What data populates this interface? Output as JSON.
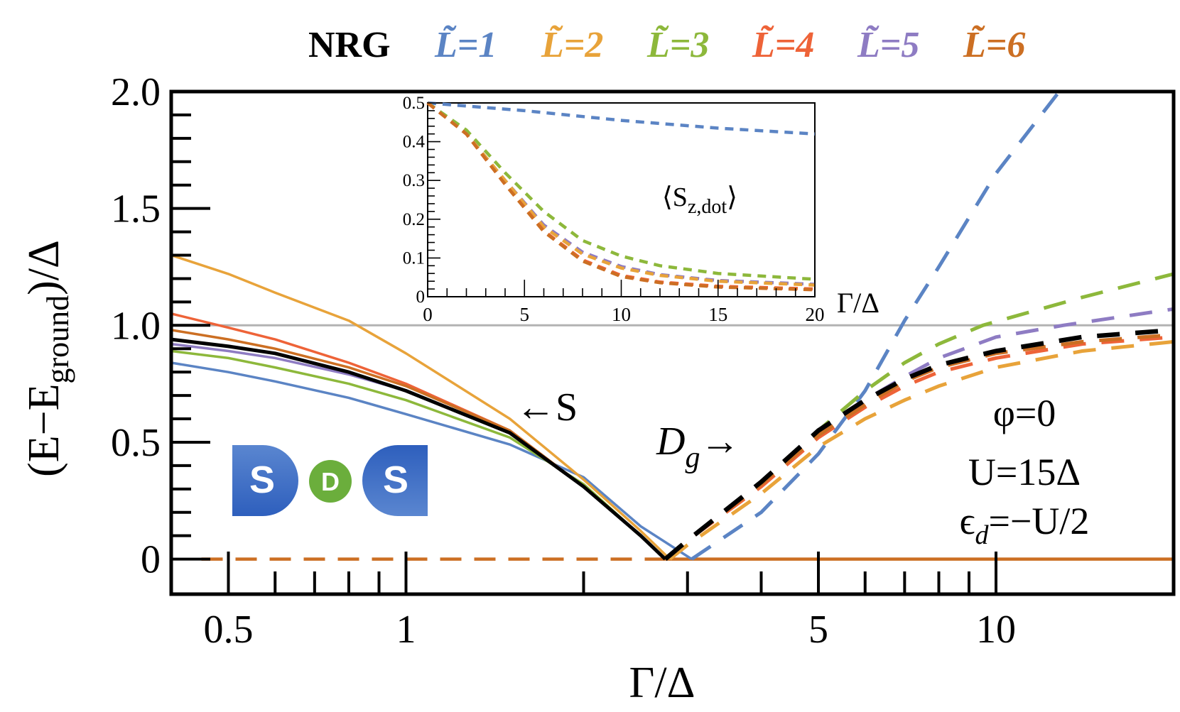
{
  "legend": {
    "reference_label": "NRG",
    "entries": [
      "L̃=1",
      "L̃=2",
      "L̃=3",
      "L̃=4",
      "L̃=5",
      "L̃=6"
    ]
  },
  "logo": {
    "left": "S",
    "middle": "D",
    "right": "S",
    "lead_color": "#3565C2",
    "dot_color": "#6BAE3C"
  },
  "chart_data": [
    {
      "type": "line",
      "xscale": "log",
      "xlim": [
        0.4,
        20
      ],
      "ylim": [
        -0.15,
        2.0
      ],
      "grid": false,
      "legend_placement": "top",
      "xlabel": "Γ/Δ",
      "ylabel": {
        "prefix": "(E−E",
        "sub": "ground",
        "suffix": ")/Δ"
      },
      "xticks": {
        "labeled": [
          {
            "v": 0.5,
            "label": "0.5"
          },
          {
            "v": 1,
            "label": "1"
          },
          {
            "v": 5,
            "label": "5"
          },
          {
            "v": 10,
            "label": "10"
          }
        ],
        "minor": [
          0.6,
          0.7,
          0.8,
          0.9,
          2,
          3,
          4,
          6,
          7,
          8,
          9
        ]
      },
      "yticks": [
        {
          "v": 0,
          "label": "0"
        },
        {
          "v": 0.5,
          "label": "0.5"
        },
        {
          "v": 1.0,
          "label": "1.0"
        },
        {
          "v": 1.5,
          "label": "1.5"
        },
        {
          "v": 2.0,
          "label": "2.0"
        }
      ],
      "reference_line": {
        "y": 1.0,
        "color": "#B3B3B3"
      },
      "ground_line": {
        "color": "#CC6F23",
        "dashed": [
          [
            0.45,
            0
          ],
          [
            2.75,
            0
          ]
        ],
        "solid": [
          [
            2.75,
            0
          ],
          [
            20,
            0
          ]
        ]
      },
      "series": [
        {
          "name": "L̃=1",
          "color": "#5B84C4",
          "S": [
            [
              0.4,
              0.84
            ],
            [
              0.5,
              0.8
            ],
            [
              0.6,
              0.76
            ],
            [
              0.8,
              0.69
            ],
            [
              1,
              0.62
            ],
            [
              1.5,
              0.49
            ],
            [
              2,
              0.35
            ],
            [
              2.5,
              0.14
            ],
            [
              3.05,
              0
            ]
          ],
          "Dg": [
            [
              3.05,
              0
            ],
            [
              4,
              0.2
            ],
            [
              5,
              0.45
            ],
            [
              6,
              0.72
            ],
            [
              7,
              1.02
            ],
            [
              8,
              1.25
            ],
            [
              10,
              1.65
            ],
            [
              12.8,
              2.0
            ]
          ]
        },
        {
          "name": "L̃=2",
          "color": "#E8A33A",
          "S": [
            [
              0.4,
              1.3
            ],
            [
              0.5,
              1.22
            ],
            [
              0.6,
              1.14
            ],
            [
              0.8,
              1.02
            ],
            [
              1,
              0.88
            ],
            [
              1.5,
              0.6
            ],
            [
              2,
              0.34
            ],
            [
              2.5,
              0.12
            ],
            [
              2.8,
              0
            ]
          ],
          "Dg": [
            [
              2.8,
              0
            ],
            [
              3,
              0.06
            ],
            [
              4,
              0.28
            ],
            [
              5,
              0.48
            ],
            [
              6,
              0.6
            ],
            [
              7,
              0.68
            ],
            [
              8,
              0.74
            ],
            [
              10,
              0.82
            ],
            [
              14,
              0.89
            ],
            [
              20,
              0.93
            ]
          ]
        },
        {
          "name": "L̃=3",
          "color": "#8DB83B",
          "S": [
            [
              0.4,
              0.89
            ],
            [
              0.5,
              0.86
            ],
            [
              0.6,
              0.82
            ],
            [
              0.8,
              0.75
            ],
            [
              1,
              0.68
            ],
            [
              1.5,
              0.52
            ],
            [
              2,
              0.32
            ],
            [
              2.5,
              0.1
            ],
            [
              2.75,
              0
            ]
          ],
          "Dg": [
            [
              2.75,
              0
            ],
            [
              3,
              0.08
            ],
            [
              4,
              0.32
            ],
            [
              5,
              0.55
            ],
            [
              6,
              0.72
            ],
            [
              7,
              0.84
            ],
            [
              8,
              0.92
            ],
            [
              9.5,
              1.0
            ],
            [
              14,
              1.12
            ],
            [
              20,
              1.22
            ]
          ]
        },
        {
          "name": "L̃=4",
          "color": "#EE6338",
          "S": [
            [
              0.4,
              1.05
            ],
            [
              0.5,
              0.99
            ],
            [
              0.6,
              0.94
            ],
            [
              0.8,
              0.84
            ],
            [
              1,
              0.75
            ],
            [
              1.5,
              0.55
            ],
            [
              2,
              0.31
            ],
            [
              2.5,
              0.1
            ],
            [
              2.75,
              0
            ]
          ],
          "Dg": [
            [
              2.75,
              0
            ],
            [
              3,
              0.08
            ],
            [
              4,
              0.31
            ],
            [
              5,
              0.52
            ],
            [
              6,
              0.65
            ],
            [
              7,
              0.74
            ],
            [
              8,
              0.8
            ],
            [
              10,
              0.86
            ],
            [
              14,
              0.92
            ],
            [
              20,
              0.95
            ]
          ]
        },
        {
          "name": "L̃=5",
          "color": "#8E7CC3",
          "S": [
            [
              0.4,
              0.92
            ],
            [
              0.5,
              0.89
            ],
            [
              0.6,
              0.86
            ],
            [
              0.8,
              0.79
            ],
            [
              1,
              0.72
            ],
            [
              1.5,
              0.54
            ],
            [
              2,
              0.31
            ],
            [
              2.5,
              0.1
            ],
            [
              2.75,
              0
            ]
          ],
          "Dg": [
            [
              2.75,
              0
            ],
            [
              3,
              0.08
            ],
            [
              4,
              0.33
            ],
            [
              5,
              0.55
            ],
            [
              6,
              0.68
            ],
            [
              7,
              0.78
            ],
            [
              8,
              0.86
            ],
            [
              10,
              0.95
            ],
            [
              13,
              1.0
            ],
            [
              20,
              1.07
            ]
          ]
        },
        {
          "name": "L̃=6",
          "color": "#CC6F23",
          "S": [
            [
              0.4,
              0.98
            ],
            [
              0.5,
              0.94
            ],
            [
              0.6,
              0.9
            ],
            [
              0.8,
              0.82
            ],
            [
              1,
              0.74
            ],
            [
              1.5,
              0.55
            ],
            [
              2,
              0.31
            ],
            [
              2.5,
              0.1
            ],
            [
              2.75,
              0
            ]
          ],
          "Dg": [
            [
              2.75,
              0
            ],
            [
              3,
              0.08
            ],
            [
              4,
              0.32
            ],
            [
              5,
              0.53
            ],
            [
              6,
              0.66
            ],
            [
              7,
              0.76
            ],
            [
              8,
              0.82
            ],
            [
              10,
              0.88
            ],
            [
              14,
              0.93
            ],
            [
              20,
              0.96
            ]
          ]
        },
        {
          "name": "NRG",
          "color": "#000000",
          "S": [
            [
              0.4,
              0.94
            ],
            [
              0.5,
              0.91
            ],
            [
              0.6,
              0.88
            ],
            [
              0.8,
              0.8
            ],
            [
              1,
              0.72
            ],
            [
              1.5,
              0.54
            ],
            [
              2,
              0.31
            ],
            [
              2.5,
              0.1
            ],
            [
              2.75,
              0
            ]
          ],
          "Dg": [
            [
              2.75,
              0
            ],
            [
              3,
              0.08
            ],
            [
              4,
              0.33
            ],
            [
              5,
              0.55
            ],
            [
              6,
              0.68
            ],
            [
              7,
              0.77
            ],
            [
              8,
              0.83
            ],
            [
              10,
              0.89
            ],
            [
              14,
              0.95
            ],
            [
              20,
              0.98
            ]
          ]
        }
      ],
      "annotations": {
        "singlet": "←S",
        "doublet_main": "D",
        "doublet_sub": "g",
        "doublet_arrow": "→",
        "phi": "φ=0",
        "U": "U=15Δ",
        "eps_main": "ϵ",
        "eps_sub": "d",
        "eps_rest": "=−U/2"
      }
    },
    {
      "type": "line",
      "xlim": [
        0,
        20
      ],
      "ylim": [
        0,
        0.5
      ],
      "grid": false,
      "xlabel": "Γ/Δ",
      "title": {
        "prefix": "⟨S",
        "sub": "z,dot",
        "suffix": "⟩"
      },
      "xticks": [
        {
          "v": 0,
          "label": "0"
        },
        {
          "v": 5,
          "label": "5"
        },
        {
          "v": 10,
          "label": "10"
        },
        {
          "v": 15,
          "label": "15"
        },
        {
          "v": 20,
          "label": "20"
        }
      ],
      "yticks": [
        {
          "v": 0,
          "label": "0"
        },
        {
          "v": 0.1,
          "label": "0.1"
        },
        {
          "v": 0.2,
          "label": "0.2"
        },
        {
          "v": 0.3,
          "label": "0.3"
        },
        {
          "v": 0.4,
          "label": "0.4"
        },
        {
          "v": 0.5,
          "label": "0.5"
        }
      ],
      "series": [
        {
          "color": "#5B84C4",
          "points": [
            [
              0,
              0.5
            ],
            [
              5,
              0.48
            ],
            [
              10,
              0.455
            ],
            [
              15,
              0.435
            ],
            [
              20,
              0.42
            ]
          ]
        },
        {
          "color": "#8DB83B",
          "points": [
            [
              0,
              0.5
            ],
            [
              2,
              0.43
            ],
            [
              4,
              0.32
            ],
            [
              6,
              0.22
            ],
            [
              8,
              0.145
            ],
            [
              10,
              0.105
            ],
            [
              12,
              0.08
            ],
            [
              15,
              0.06
            ],
            [
              20,
              0.045
            ]
          ]
        },
        {
          "color": "#8E7CC3",
          "points": [
            [
              0,
              0.5
            ],
            [
              2,
              0.42
            ],
            [
              4,
              0.3
            ],
            [
              6,
              0.185
            ],
            [
              8,
              0.115
            ],
            [
              10,
              0.078
            ],
            [
              12,
              0.057
            ],
            [
              15,
              0.042
            ],
            [
              20,
              0.032
            ]
          ]
        },
        {
          "color": "#E8A33A",
          "points": [
            [
              0,
              0.5
            ],
            [
              2,
              0.42
            ],
            [
              4,
              0.3
            ],
            [
              6,
              0.18
            ],
            [
              8,
              0.11
            ],
            [
              10,
              0.074
            ],
            [
              12,
              0.055
            ],
            [
              15,
              0.04
            ],
            [
              20,
              0.03
            ]
          ]
        },
        {
          "color": "#EE6338",
          "points": [
            [
              0,
              0.5
            ],
            [
              2,
              0.42
            ],
            [
              4,
              0.29
            ],
            [
              6,
              0.17
            ],
            [
              8,
              0.095
            ],
            [
              10,
              0.055
            ],
            [
              12,
              0.038
            ],
            [
              15,
              0.027
            ],
            [
              20,
              0.02
            ]
          ]
        },
        {
          "color": "#CC6F23",
          "points": [
            [
              0,
              0.5
            ],
            [
              2,
              0.42
            ],
            [
              4,
              0.29
            ],
            [
              6,
              0.168
            ],
            [
              8,
              0.092
            ],
            [
              10,
              0.052
            ],
            [
              12,
              0.036
            ],
            [
              15,
              0.025
            ],
            [
              20,
              0.018
            ]
          ]
        }
      ]
    }
  ]
}
